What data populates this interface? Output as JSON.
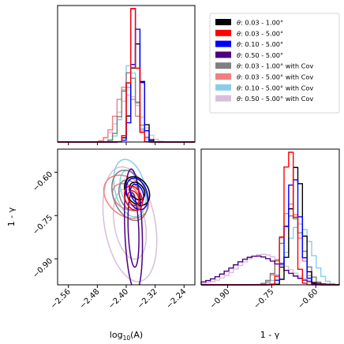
{
  "chart_data": {
    "type": "corner",
    "parameters": [
      "log_{10}(A)",
      "1 - γ"
    ],
    "axes": {
      "logA": {
        "label_main": "log",
        "label_sub": "10",
        "label_tail": "(A)",
        "range": [
          -2.59,
          -2.21
        ],
        "ticks": [
          -2.56,
          -2.48,
          -2.4,
          -2.32,
          -2.24
        ],
        "tick_labels": [
          "−2.56",
          "−2.48",
          "−2.40",
          "−2.32",
          "−2.24"
        ]
      },
      "one_minus_gamma": {
        "label": "1 - γ",
        "range": [
          -0.99,
          -0.52
        ],
        "ticks": [
          -0.9,
          -0.75,
          -0.6
        ],
        "tick_labels": [
          "−0.90",
          "−0.75",
          "−0.60"
        ]
      }
    },
    "legend": {
      "placement": "upper-right",
      "entries": [
        {
          "theta": "θ",
          "sep": ":",
          "range": " 0.03 - 1.00°",
          "suffix": "",
          "color": "#000000"
        },
        {
          "theta": "θ",
          "sep": ":",
          "range": " 0.03 - 5.00°",
          "suffix": "",
          "color": "#ff0000"
        },
        {
          "theta": "θ",
          "sep": ":",
          "range": " 0.10 - 5.00°",
          "suffix": "",
          "color": "#0000ff"
        },
        {
          "theta": "θ",
          "sep": ":",
          "range": " 0.50 - 5.00°",
          "suffix": "",
          "color": "#4b0082"
        },
        {
          "theta": "θ",
          "sep": ":",
          "range": " 0.03 - 1.00°",
          "suffix": " with Cov",
          "color": "#808080"
        },
        {
          "theta": "θ",
          "sep": ":",
          "range": " 0.03 - 5.00°",
          "suffix": " with Cov",
          "color": "#f08080"
        },
        {
          "theta": "θ",
          "sep": ":",
          "range": " 0.10 - 5.00°",
          "suffix": " with Cov",
          "color": "#87ceeb"
        },
        {
          "theta": "θ",
          "sep": ":",
          "range": " 0.50 - 5.00°",
          "suffix": " with Cov",
          "color": "#d8bfd8"
        }
      ]
    },
    "series": [
      {
        "color": "#000000",
        "logA": {
          "mean": -2.37,
          "sd": 0.014
        },
        "gamma": {
          "mean": -0.665,
          "sd": 0.02
        },
        "rho": -0.3
      },
      {
        "color": "#ff0000",
        "logA": {
          "mean": -2.38,
          "sd": 0.01
        },
        "gamma": {
          "mean": -0.69,
          "sd": 0.017
        },
        "rho": -0.3
      },
      {
        "color": "#0000ff",
        "logA": {
          "mean": -2.37,
          "sd": 0.012
        },
        "gamma": {
          "mean": -0.675,
          "sd": 0.022
        },
        "rho": -0.3
      },
      {
        "color": "#4b0082",
        "logA": {
          "mean": -2.38,
          "sd": 0.01
        },
        "gamma": {
          "mean": -0.8,
          "sd": 0.085
        },
        "rho": -0.25
      },
      {
        "color": "#808080",
        "logA": {
          "mean": -2.39,
          "sd": 0.02
        },
        "gamma": {
          "mean": -0.68,
          "sd": 0.035
        },
        "rho": -0.3
      },
      {
        "color": "#f08080",
        "logA": {
          "mean": -2.4,
          "sd": 0.025
        },
        "gamma": {
          "mean": -0.685,
          "sd": 0.03
        },
        "rho": -0.3
      },
      {
        "color": "#87ceeb",
        "logA": {
          "mean": -2.39,
          "sd": 0.018
        },
        "gamma": {
          "mean": -0.655,
          "sd": 0.04
        },
        "rho": -0.3
      },
      {
        "color": "#d8bfd8",
        "logA": {
          "mean": -2.39,
          "sd": 0.03
        },
        "gamma": {
          "mean": -0.78,
          "sd": 0.08
        },
        "rho": -0.3
      }
    ],
    "draw_order": [
      7,
      6,
      5,
      4,
      3,
      0,
      2,
      1
    ],
    "histogram": {
      "bins": 30
    },
    "contour_levels_sigma": [
      1,
      2
    ]
  }
}
